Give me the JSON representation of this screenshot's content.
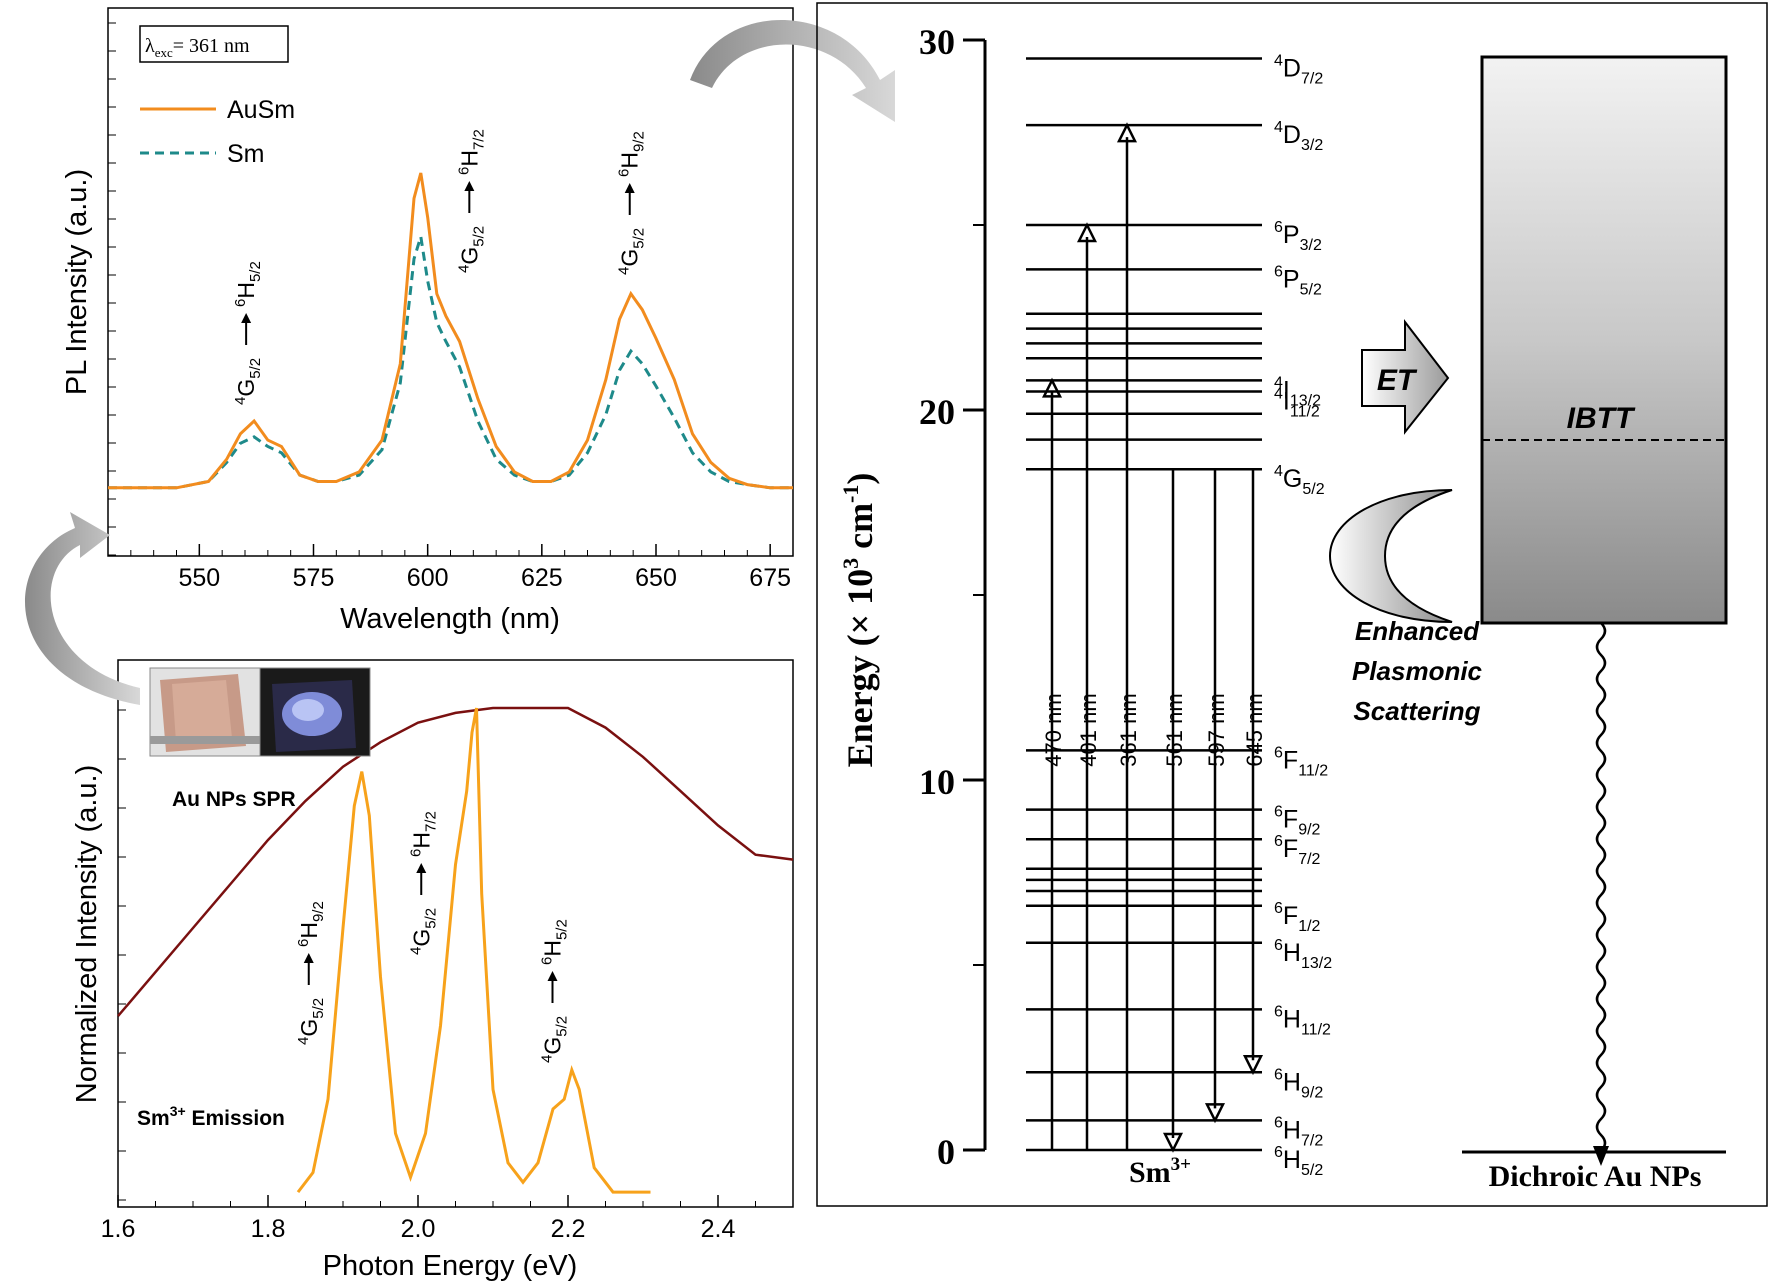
{
  "colors": {
    "ausm": "#f28c1e",
    "sm": "#1e8a8a",
    "spr": "#7a1010",
    "emission": "#f7a21b",
    "axis": "#000000"
  },
  "chart_data": [
    {
      "type": "line",
      "name": "pl-spectrum",
      "xlabel": "Wavelength (nm)",
      "ylabel": "PL Intensity (a.u.)",
      "xlim": [
        530,
        680
      ],
      "ylim": [
        0,
        1.2
      ],
      "xticks": [
        "550",
        "575",
        "600",
        "625",
        "650",
        "675"
      ],
      "annotation": {
        "prefix": "λ",
        "sub": "exc",
        "rest": "= 361 nm"
      },
      "legend": [
        {
          "label": "AuSm",
          "style": "solid"
        },
        {
          "label": "Sm",
          "style": "dashed"
        }
      ],
      "series": [
        {
          "name": "AuSm",
          "x": [
            530,
            545,
            552,
            556,
            559,
            562,
            565,
            568,
            572,
            576,
            580,
            585,
            590,
            594,
            597,
            598.5,
            600,
            602,
            604,
            607,
            611,
            615,
            619,
            623,
            627,
            631,
            635,
            639,
            642,
            644.5,
            647,
            650,
            654,
            658,
            662,
            666,
            670,
            675,
            680
          ],
          "y": [
            0.01,
            0.01,
            0.03,
            0.1,
            0.18,
            0.22,
            0.16,
            0.14,
            0.05,
            0.03,
            0.03,
            0.06,
            0.16,
            0.4,
            0.92,
            1.0,
            0.86,
            0.62,
            0.55,
            0.47,
            0.29,
            0.14,
            0.06,
            0.03,
            0.03,
            0.06,
            0.16,
            0.35,
            0.54,
            0.62,
            0.57,
            0.48,
            0.35,
            0.18,
            0.09,
            0.04,
            0.02,
            0.01,
            0.01
          ]
        },
        {
          "name": "Sm",
          "x": [
            530,
            545,
            552,
            556,
            559,
            562,
            565,
            568,
            572,
            576,
            580,
            585,
            590,
            594,
            597,
            598.5,
            600,
            602,
            604,
            607,
            611,
            615,
            619,
            623,
            627,
            631,
            635,
            639,
            642,
            644.5,
            647,
            650,
            654,
            658,
            662,
            666,
            670,
            675,
            680
          ],
          "y": [
            0.01,
            0.01,
            0.03,
            0.09,
            0.15,
            0.17,
            0.14,
            0.12,
            0.05,
            0.03,
            0.03,
            0.05,
            0.13,
            0.34,
            0.73,
            0.8,
            0.66,
            0.53,
            0.47,
            0.39,
            0.22,
            0.1,
            0.05,
            0.03,
            0.03,
            0.05,
            0.12,
            0.24,
            0.38,
            0.44,
            0.4,
            0.33,
            0.23,
            0.12,
            0.06,
            0.03,
            0.02,
            0.01,
            0.01
          ]
        }
      ],
      "peak_labels": [
        {
          "x": 562,
          "upper": "6",
          "upper_sub": "5/2",
          "lower": "4",
          "lower_sub": "5/2",
          "upper_letter": "H",
          "lower_letter": "G"
        },
        {
          "x": 610,
          "upper": "6",
          "upper_sub": "7/2",
          "lower": "4",
          "lower_sub": "5/2",
          "upper_letter": "H",
          "lower_letter": "G"
        },
        {
          "x": 646,
          "upper": "6",
          "upper_sub": "9/2",
          "lower": "4",
          "lower_sub": "5/2",
          "upper_letter": "H",
          "lower_letter": "G"
        }
      ]
    },
    {
      "type": "line",
      "name": "normalized-spectrum",
      "xlabel": "Photon Energy (eV)",
      "ylabel": "Normalized Intensity (a.u.)",
      "xlim": [
        1.6,
        2.5
      ],
      "ylim": [
        0,
        1.05
      ],
      "xticks": [
        "1.6",
        "1.8",
        "2.0",
        "2.2",
        "2.4"
      ],
      "label_spr": "Au NPs SPR",
      "label_emission": "Sm",
      "label_emission_sup": "3+",
      "label_emission_rest": " Emission",
      "series": [
        {
          "name": "Au NPs SPR",
          "x": [
            1.6,
            1.65,
            1.7,
            1.75,
            1.8,
            1.85,
            1.9,
            1.95,
            2.0,
            2.05,
            2.1,
            2.15,
            2.2,
            2.25,
            2.3,
            2.35,
            2.4,
            2.45,
            2.5
          ],
          "y": [
            0.37,
            0.46,
            0.55,
            0.64,
            0.73,
            0.81,
            0.88,
            0.93,
            0.97,
            0.99,
            1.0,
            1.0,
            1.0,
            0.96,
            0.9,
            0.83,
            0.76,
            0.7,
            0.69
          ]
        },
        {
          "name": "Sm3+ Emission",
          "x": [
            1.84,
            1.86,
            1.88,
            1.9,
            1.915,
            1.925,
            1.935,
            1.95,
            1.97,
            1.99,
            2.01,
            2.03,
            2.05,
            2.065,
            2.072,
            2.078,
            2.085,
            2.1,
            2.12,
            2.14,
            2.16,
            2.18,
            2.195,
            2.205,
            2.215,
            2.235,
            2.26,
            2.28,
            2.31
          ],
          "y": [
            0.01,
            0.05,
            0.2,
            0.55,
            0.8,
            0.87,
            0.78,
            0.45,
            0.13,
            0.04,
            0.13,
            0.35,
            0.68,
            0.83,
            0.95,
            1.0,
            0.62,
            0.22,
            0.07,
            0.03,
            0.07,
            0.18,
            0.2,
            0.26,
            0.22,
            0.06,
            0.01,
            0.01,
            0.01
          ]
        }
      ],
      "peak_labels": [
        {
          "x": 1.865,
          "upper": "6",
          "upper_sub": "9/2",
          "lower": "4",
          "lower_sub": "5/2",
          "upper_letter": "H",
          "lower_letter": "G"
        },
        {
          "x": 2.015,
          "upper": "6",
          "upper_sub": "7/2",
          "lower": "4",
          "lower_sub": "5/2",
          "upper_letter": "H",
          "lower_letter": "G"
        },
        {
          "x": 2.19,
          "upper": "6",
          "upper_sub": "5/2",
          "lower": "4",
          "lower_sub": "5/2",
          "upper_letter": "H",
          "lower_letter": "G"
        }
      ]
    },
    {
      "type": "diagram",
      "name": "energy-level-diagram",
      "ylabel_main": "Energy (× 10",
      "ylabel_sup1": "3",
      "ylabel_mid": " cm",
      "ylabel_sup2": "-1",
      "ylabel_end": ")",
      "ylim": [
        0,
        30
      ],
      "yticks": [
        "0",
        "10",
        "20",
        "30"
      ],
      "ion_label": "Sm",
      "ion_sup": "3+",
      "levels": [
        {
          "energy": 29.5,
          "sup": "4",
          "letter": "D",
          "sub": "7/2"
        },
        {
          "energy": 27.7,
          "sup": "4",
          "letter": "D",
          "sub": "3/2"
        },
        {
          "energy": 25.0,
          "sup": "6",
          "letter": "P",
          "sub": "3/2"
        },
        {
          "energy": 23.8,
          "sup": "6",
          "letter": "P",
          "sub": "5/2"
        },
        {
          "energy": 22.6
        },
        {
          "energy": 22.2
        },
        {
          "energy": 21.8
        },
        {
          "energy": 21.4
        },
        {
          "energy": 20.8,
          "sup": "4",
          "letter": "I",
          "sub": "13/2"
        },
        {
          "energy": 20.5,
          "sup": "4",
          "letter": "I",
          "sub": "11/2"
        },
        {
          "energy": 19.9
        },
        {
          "energy": 19.2
        },
        {
          "energy": 18.4,
          "sup": "4",
          "letter": "G",
          "sub": "5/2"
        },
        {
          "energy": 10.8,
          "sup": "6",
          "letter": "F",
          "sub": "11/2"
        },
        {
          "energy": 9.2,
          "sup": "6",
          "letter": "F",
          "sub": "9/2"
        },
        {
          "energy": 8.4,
          "sup": "6",
          "letter": "F",
          "sub": "7/2"
        },
        {
          "energy": 7.6
        },
        {
          "energy": 7.3
        },
        {
          "energy": 7.0
        },
        {
          "energy": 6.6,
          "sup": "6",
          "letter": "F",
          "sub": "1/2"
        },
        {
          "energy": 5.6,
          "sup": "6",
          "letter": "H",
          "sub": "13/2"
        },
        {
          "energy": 3.8,
          "sup": "6",
          "letter": "H",
          "sub": "11/2"
        },
        {
          "energy": 2.1,
          "sup": "6",
          "letter": "H",
          "sub": "9/2"
        },
        {
          "energy": 0.8,
          "sup": "6",
          "letter": "H",
          "sub": "7/2"
        },
        {
          "energy": 0.0,
          "sup": "6",
          "letter": "H",
          "sub": "5/2"
        }
      ],
      "transitions": [
        {
          "label": "470 nm",
          "from": 0,
          "to": 20.8,
          "dir": "up"
        },
        {
          "label": "401 nm",
          "from": 0,
          "to": 25.0,
          "dir": "up"
        },
        {
          "label": "361 nm",
          "from": 0,
          "to": 27.7,
          "dir": "up"
        },
        {
          "label": "561 nm",
          "from": 18.4,
          "to": 0.0,
          "dir": "down"
        },
        {
          "label": "597 nm",
          "from": 18.4,
          "to": 0.8,
          "dir": "down"
        },
        {
          "label": "645 nm",
          "from": 18.4,
          "to": 2.1,
          "dir": "down"
        }
      ],
      "et_label": "ET",
      "ibtt_label": "IBTT",
      "scatter_label_1": "Enhanced",
      "scatter_label_2": "Plasmonic",
      "scatter_label_3": "Scattering",
      "au_label": "Dichroic Au NPs"
    }
  ]
}
